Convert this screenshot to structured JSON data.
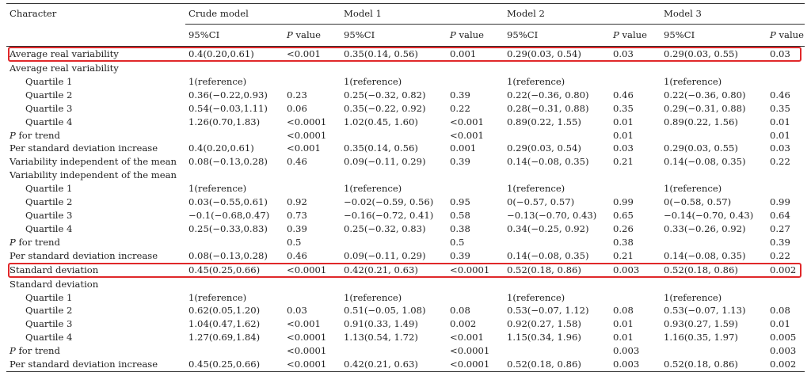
{
  "header": {
    "character": "Character",
    "groups": [
      "Crude model",
      "Model 1",
      "Model 2",
      "Model 3"
    ],
    "ci": "95%CI",
    "pvalue_italic": "P",
    "pvalue_rest": " value"
  },
  "rows": [
    {
      "label": "Average real variability",
      "cells": [
        "0.4(0.20,0.61)",
        "<0.001",
        "0.35(0.14, 0.56)",
        "0.001",
        "0.29(0.03, 0.54)",
        "0.03",
        "0.29(0.03, 0.55)",
        "0.03"
      ]
    },
    {
      "label": "Average real variability",
      "cells": [
        "",
        "",
        "",
        "",
        "",
        "",
        "",
        ""
      ]
    },
    {
      "label": "Quartile 1",
      "cells": [
        "1(reference)",
        "",
        "1(reference)",
        "",
        "1(reference)",
        "",
        "1(reference)",
        ""
      ]
    },
    {
      "label": "Quartile 2",
      "cells": [
        "0.36(−0.22,0.93)",
        "0.23",
        "0.25(−0.32, 0.82)",
        "0.39",
        "0.22(−0.36, 0.80)",
        "0.46",
        "0.22(−0.36, 0.80)",
        "0.46"
      ]
    },
    {
      "label": "Quartile 3",
      "cells": [
        "0.54(−0.03,1.11)",
        "0.06",
        "0.35(−0.22, 0.92)",
        "0.22",
        "0.28(−0.31, 0.88)",
        "0.35",
        "0.29(−0.31, 0.88)",
        "0.35"
      ]
    },
    {
      "label": "Quartile 4",
      "cells": [
        "1.26(0.70,1.83)",
        "<0.0001",
        "1.02(0.45, 1.60)",
        "<0.001",
        "0.89(0.22, 1.55)",
        "0.01",
        "0.89(0.22, 1.56)",
        "0.01"
      ]
    },
    {
      "label": "for trend",
      "cells": [
        "",
        "<0.0001",
        "",
        "<0.001",
        "",
        "0.01",
        "",
        "0.01"
      ]
    },
    {
      "label": "Per standard deviation increase",
      "cells": [
        "0.4(0.20,0.61)",
        "<0.001",
        "0.35(0.14, 0.56)",
        "0.001",
        "0.29(0.03, 0.54)",
        "0.03",
        "0.29(0.03, 0.55)",
        "0.03"
      ]
    },
    {
      "label": "Variability independent of the mean",
      "cells": [
        "0.08(−0.13,0.28)",
        "0.46",
        "0.09(−0.11, 0.29)",
        "0.39",
        "0.14(−0.08, 0.35)",
        "0.21",
        "0.14(−0.08, 0.35)",
        "0.22"
      ]
    },
    {
      "label": "Variability independent of the mean",
      "cells": [
        "",
        "",
        "",
        "",
        "",
        "",
        "",
        ""
      ]
    },
    {
      "label": "Quartile 1",
      "cells": [
        "1(reference)",
        "",
        "1(reference)",
        "",
        "1(reference)",
        "",
        "1(reference)",
        ""
      ]
    },
    {
      "label": "Quartile 2",
      "cells": [
        "0.03(−0.55,0.61)",
        "0.92",
        "−0.02(−0.59, 0.56)",
        "0.95",
        "0(−0.57, 0.57)",
        "0.99",
        "0(−0.58, 0.57)",
        "0.99"
      ]
    },
    {
      "label": "Quartile 3",
      "cells": [
        "−0.1(−0.68,0.47)",
        "0.73",
        "−0.16(−0.72, 0.41)",
        "0.58",
        "−0.13(−0.70, 0.43)",
        "0.65",
        "−0.14(−0.70, 0.43)",
        "0.64"
      ]
    },
    {
      "label": "Quartile 4",
      "cells": [
        "0.25(−0.33,0.83)",
        "0.39",
        "0.25(−0.32, 0.83)",
        "0.38",
        "0.34(−0.25, 0.92)",
        "0.26",
        "0.33(−0.26, 0.92)",
        "0.27"
      ]
    },
    {
      "label": "for trend",
      "cells": [
        "",
        "0.5",
        "",
        "0.5",
        "",
        "0.38",
        "",
        "0.39"
      ]
    },
    {
      "label": "Per standard deviation increase",
      "cells": [
        "0.08(−0.13,0.28)",
        "0.46",
        "0.09(−0.11, 0.29)",
        "0.39",
        "0.14(−0.08, 0.35)",
        "0.21",
        "0.14(−0.08, 0.35)",
        "0.22"
      ]
    },
    {
      "label": "Standard deviation",
      "cells": [
        "0.45(0.25,0.66)",
        "<0.0001",
        "0.42(0.21, 0.63)",
        "<0.0001",
        "0.52(0.18, 0.86)",
        "0.003",
        "0.52(0.18, 0.86)",
        "0.002"
      ]
    },
    {
      "label": "Standard deviation",
      "cells": [
        "",
        "",
        "",
        "",
        "",
        "",
        "",
        ""
      ]
    },
    {
      "label": "Quartile 1",
      "cells": [
        "1(reference)",
        "",
        "1(reference)",
        "",
        "1(reference)",
        "",
        "1(reference)",
        ""
      ]
    },
    {
      "label": "Quartile 2",
      "cells": [
        "0.62(0.05,1.20)",
        "0.03",
        "0.51(−0.05, 1.08)",
        "0.08",
        "0.53(−0.07, 1.12)",
        "0.08",
        "0.53(−0.07, 1.13)",
        "0.08"
      ]
    },
    {
      "label": "Quartile 3",
      "cells": [
        "1.04(0.47,1.62)",
        "<0.001",
        "0.91(0.33, 1.49)",
        "0.002",
        "0.92(0.27, 1.58)",
        "0.01",
        "0.93(0.27, 1.59)",
        "0.01"
      ]
    },
    {
      "label": "Quartile 4",
      "cells": [
        "1.27(0.69,1.84)",
        "<0.0001",
        "1.13(0.54, 1.72)",
        "<0.001",
        "1.15(0.34, 1.96)",
        "0.01",
        "1.16(0.35, 1.97)",
        "0.005"
      ]
    },
    {
      "label": "for trend",
      "cells": [
        "",
        "<0.0001",
        "",
        "<0.0001",
        "",
        "0.003",
        "",
        "0.003"
      ]
    },
    {
      "label": "Per standard deviation increase",
      "cells": [
        "0.45(0.25,0.66)",
        "<0.0001",
        "0.42(0.21, 0.63)",
        "<0.0001",
        "0.52(0.18, 0.86)",
        "0.003",
        "0.52(0.18, 0.86)",
        "0.002"
      ]
    }
  ],
  "highlight_color": "#e0282a"
}
